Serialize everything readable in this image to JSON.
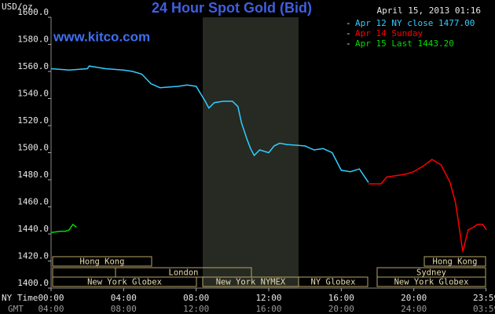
{
  "chart_data": {
    "type": "line",
    "title": "24 Hour Spot Gold (Bid)",
    "timestamp": "April 15, 2013 01:16",
    "website": "www.kitco.com",
    "y_label": "USD/oz",
    "x_label": "NY Time",
    "x2_label": "GMT",
    "xlim": [
      0,
      24
    ],
    "ylim": [
      1400,
      1600
    ],
    "yticks": [
      {
        "value": 1400,
        "label": "1400.0"
      },
      {
        "value": 1420,
        "label": "1420.0"
      },
      {
        "value": 1440,
        "label": "1440.0"
      },
      {
        "value": 1460,
        "label": "1460.0"
      },
      {
        "value": 1480,
        "label": "1480.0"
      },
      {
        "value": 1500,
        "label": "1500.0"
      },
      {
        "value": 1520,
        "label": "1520.0"
      },
      {
        "value": 1540,
        "label": "1540.0"
      },
      {
        "value": 1560,
        "label": "1560.0"
      },
      {
        "value": 1580,
        "label": "1580.0"
      },
      {
        "value": 1600,
        "label": "1600.0"
      }
    ],
    "xticks": [
      {
        "value": 0,
        "label": "00:00"
      },
      {
        "value": 4,
        "label": "04:00"
      },
      {
        "value": 8,
        "label": "08:00"
      },
      {
        "value": 12,
        "label": "12:00"
      },
      {
        "value": 16,
        "label": "16:00"
      },
      {
        "value": 20,
        "label": "20:00"
      },
      {
        "value": 23.98,
        "label": "23:59"
      }
    ],
    "x2ticks": [
      {
        "value": 0,
        "label": "04:00"
      },
      {
        "value": 4,
        "label": "08:00"
      },
      {
        "value": 8,
        "label": "12:00"
      },
      {
        "value": 12,
        "label": "16:00"
      },
      {
        "value": 16,
        "label": "20:00"
      },
      {
        "value": 20,
        "label": "24:00"
      },
      {
        "value": 23.98,
        "label": "03:59"
      }
    ],
    "grid": false,
    "legend": "top-right",
    "series": [
      {
        "name": "Apr 12 NY close 1477.00",
        "color": "#33ccff",
        "x": [
          0,
          1,
          2,
          2.1,
          3,
          4,
          4.5,
          5,
          5.5,
          6,
          7,
          7.5,
          8,
          8.5,
          8.7,
          9,
          9.5,
          10,
          10.3,
          10.5,
          10.8,
          11,
          11.2,
          11.5,
          12,
          12.3,
          12.6,
          13,
          14,
          14.5,
          15,
          15.5,
          16,
          16.5,
          17,
          17.3,
          17.5
        ],
        "values": [
          1562,
          1561,
          1562,
          1564,
          1562,
          1561,
          1560,
          1558,
          1551,
          1548,
          1549,
          1550,
          1549,
          1538,
          1533,
          1537,
          1538,
          1538,
          1534,
          1522,
          1510,
          1503,
          1498,
          1502,
          1500,
          1505,
          1507,
          1506,
          1505,
          1502,
          1503,
          1500,
          1487,
          1486,
          1488,
          1482,
          1478
        ]
      },
      {
        "name": "Apr 14 Sunday",
        "color": "#ff0000",
        "x": [
          17.5,
          18.2,
          18.5,
          19,
          19.5,
          20,
          20.5,
          21,
          21.5,
          22,
          22.3,
          22.5,
          22.7,
          23,
          23.3,
          23.5,
          23.8,
          24
        ],
        "values": [
          1477,
          1477,
          1482,
          1483,
          1484,
          1486,
          1490,
          1495,
          1491,
          1478,
          1463,
          1445,
          1427,
          1443,
          1445,
          1447,
          1447,
          1443
        ]
      },
      {
        "name": "Apr 15 Last 1443.20",
        "color": "#00dd00",
        "x": [
          0,
          0.5,
          0.8,
          1,
          1.2,
          1.4
        ],
        "values": [
          1441,
          1442,
          1442,
          1443,
          1447,
          1445
        ]
      }
    ],
    "sessions": [
      "Hong Kong",
      "London",
      "New York Globex",
      "New York NYMEX",
      "NY Globex",
      "Hong Kong",
      "Sydney",
      "New York Globex"
    ]
  }
}
